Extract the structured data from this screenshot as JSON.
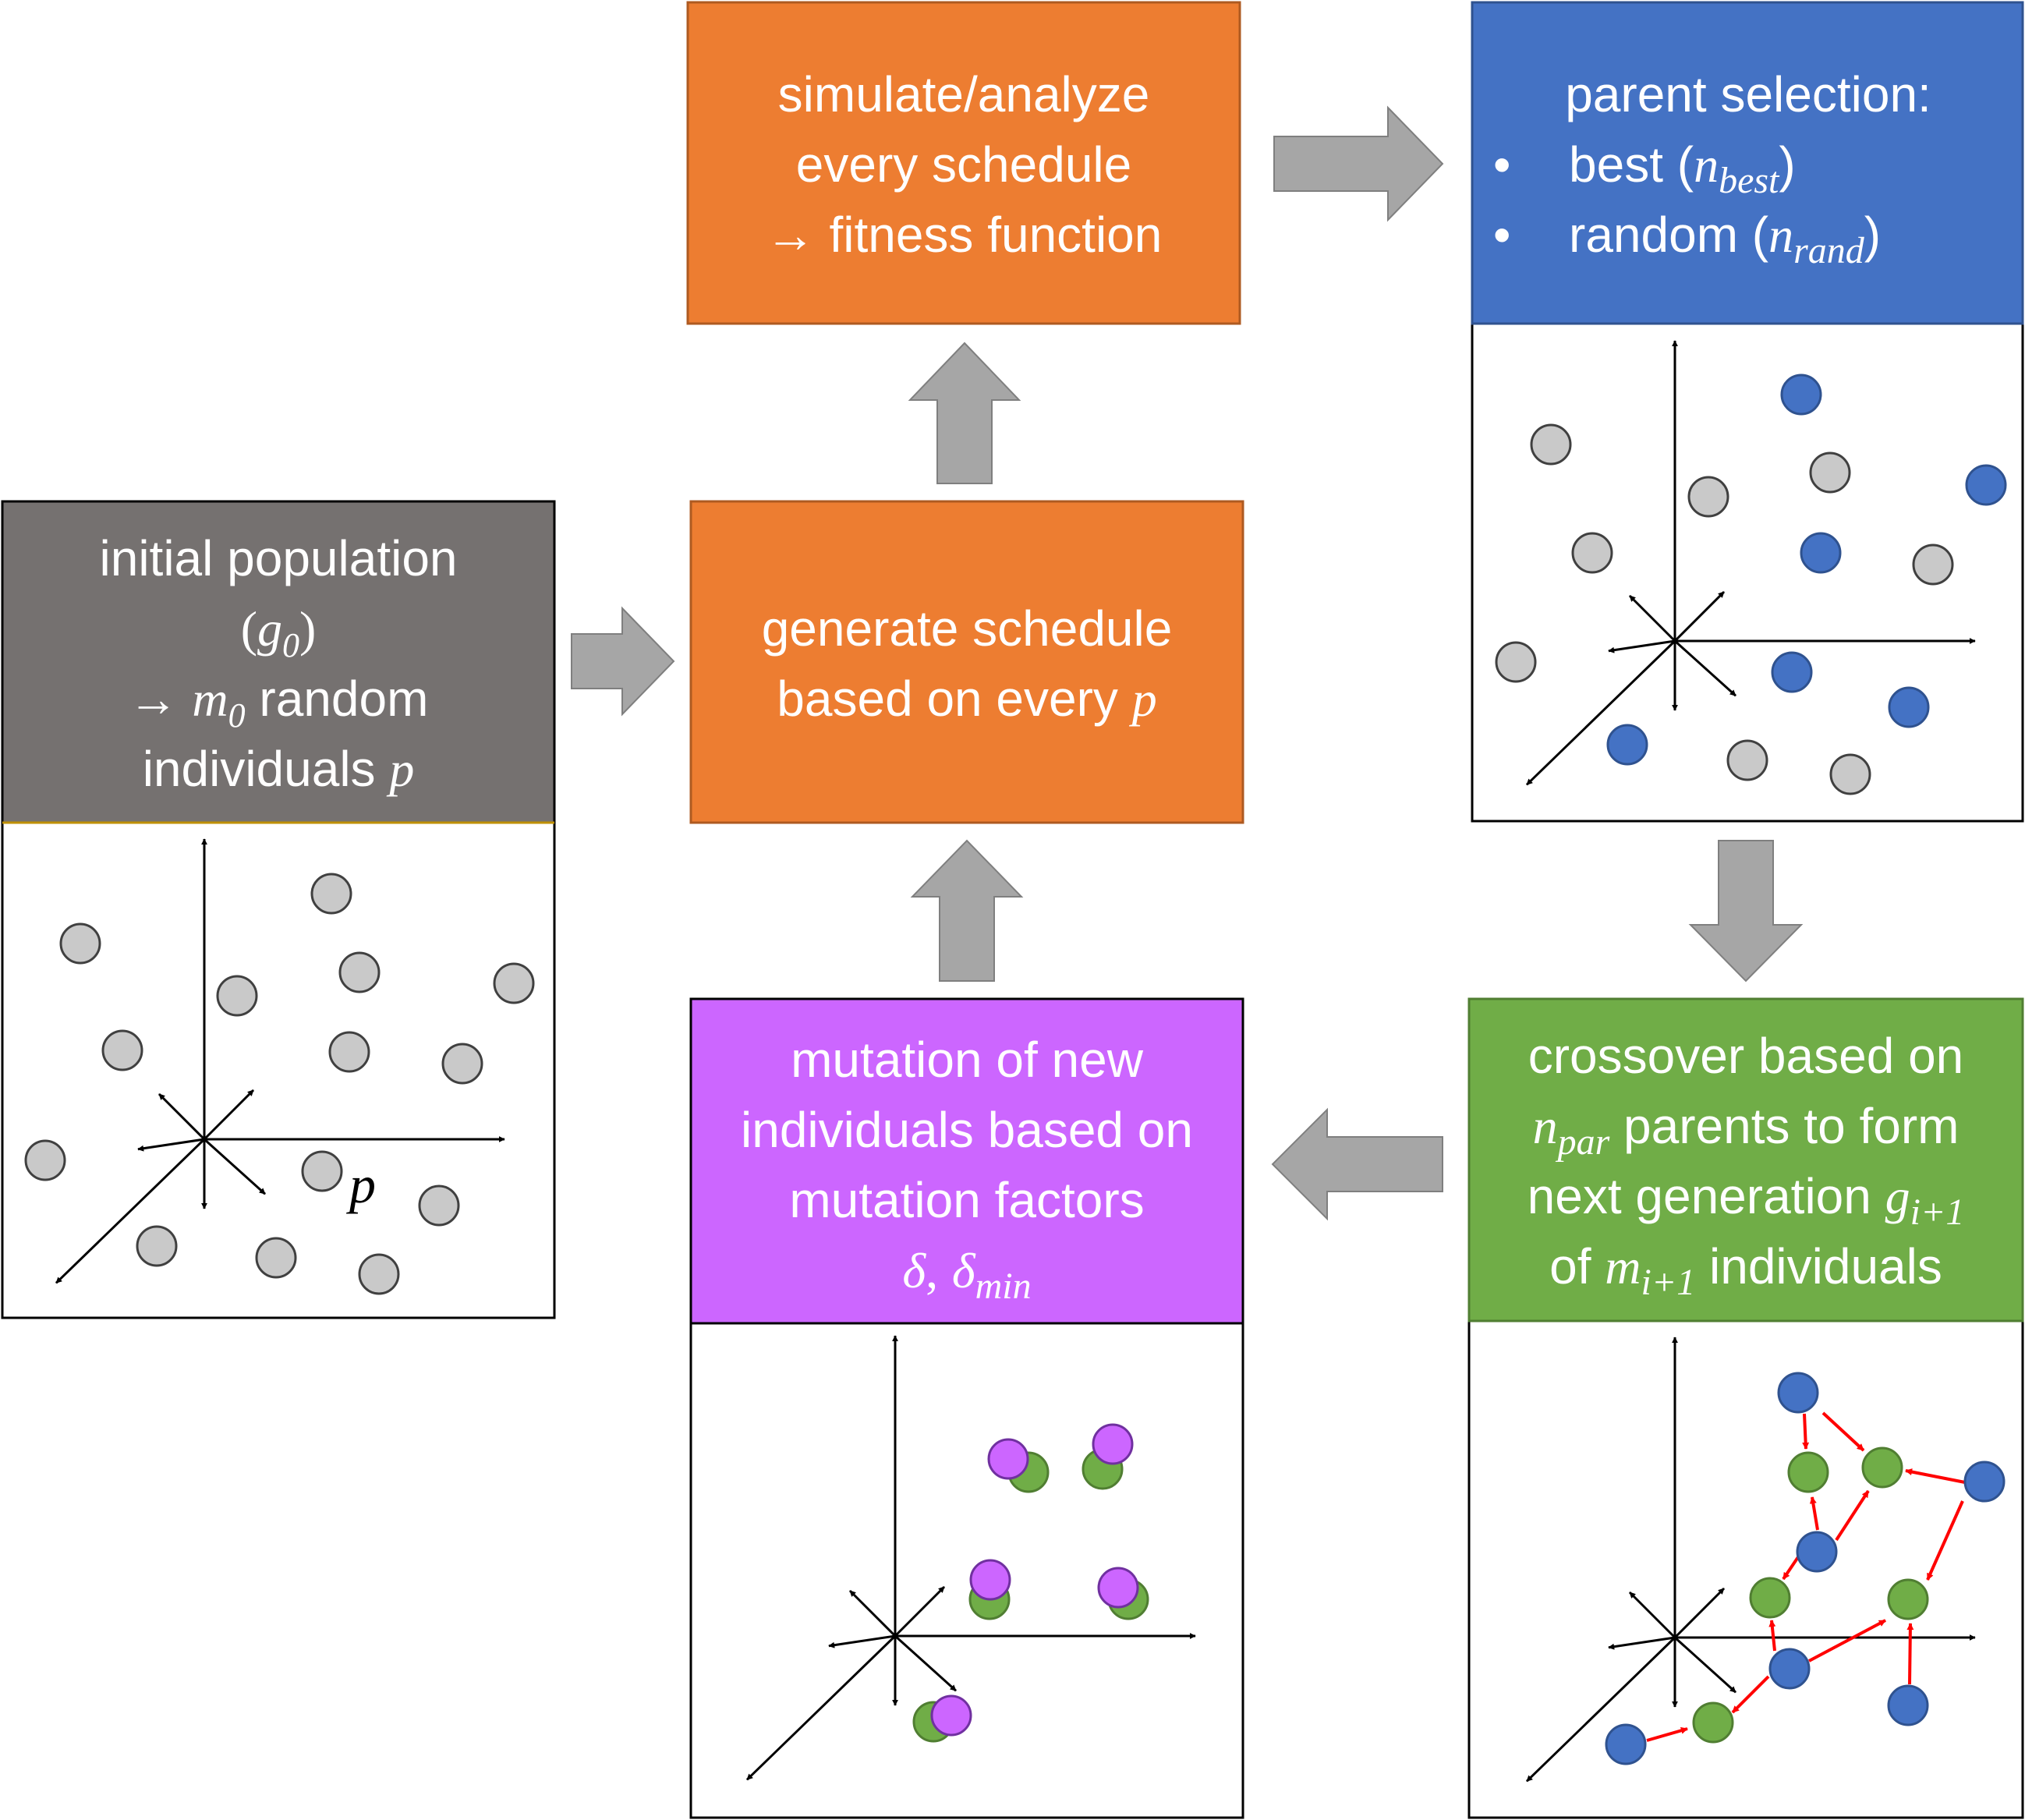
{
  "colors": {
    "gray_header": "#757170",
    "orange": "#ed7d31",
    "orange_border": "#ae5a21",
    "blue": "#4472c4",
    "blue_border": "#2f528f",
    "purple": "#cc66ff",
    "green": "#70ad47",
    "green_border": "#507e32",
    "dot_gray": "#c9c9c9",
    "dot_blue": "#4472c4",
    "dot_green": "#70ad47",
    "dot_purple": "#cc66ff",
    "arrow_fill": "#a6a6a6",
    "red_arrow": "#ff0000"
  },
  "initial_population": {
    "line1": "initial population",
    "line2_open": "(",
    "line2_var": "g",
    "line2_sub": "0",
    "line2_close": ")",
    "line3_arrow": "→",
    "line3_var": "m",
    "line3_sub": "0",
    "line3_text": "random",
    "line4_text": "individuals",
    "line4_var": "p",
    "plot_label": "p"
  },
  "generate_schedule": {
    "line1": "generate schedule",
    "line2_text": "based on every",
    "line2_var": "p"
  },
  "simulate": {
    "line1": "simulate/analyze",
    "line2": "every schedule",
    "line3_arrow": "→",
    "line3_text": "fitness function"
  },
  "parent_selection": {
    "title": "parent selection:",
    "bullet": "•",
    "item1_text": "best (",
    "item1_var": "n",
    "item1_sub": "best",
    "item1_close": ")",
    "item2_text": "random (",
    "item2_var": "n",
    "item2_sub": "rand",
    "item2_close": ")"
  },
  "crossover": {
    "line1": "crossover based on",
    "line2_var": "n",
    "line2_sub": "par",
    "line2_text": "parents to form",
    "line3_text": "next generation",
    "line3_var": "g",
    "line3_sub": "i+1",
    "line4_text": "of",
    "line4_var": "m",
    "line4_sub": "i+1",
    "line4_text2": "individuals"
  },
  "mutation": {
    "line1": "mutation of new",
    "line2": "individuals based on",
    "line3": "mutation factors",
    "line4_var1": "δ",
    "line4_sep": ",",
    "line4_var2": "δ",
    "line4_sub": "min"
  }
}
